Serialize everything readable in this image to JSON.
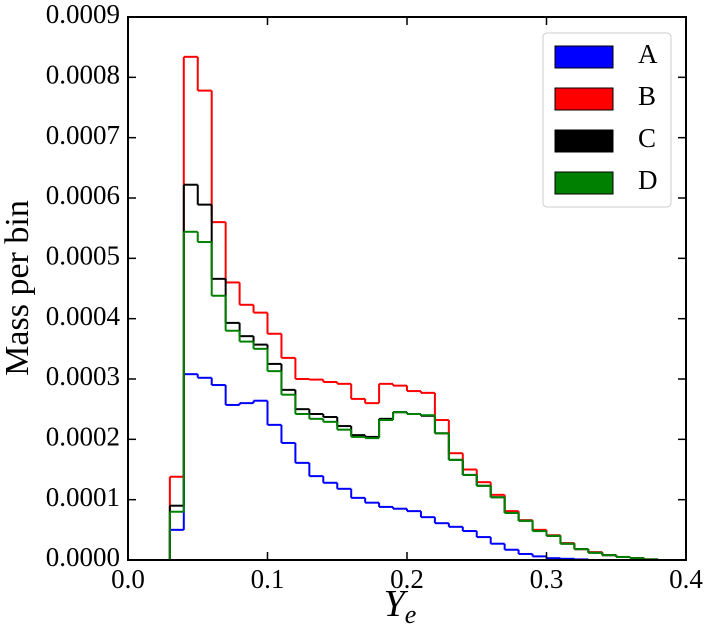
{
  "chart_data": {
    "type": "histogram",
    "y_label": "Mass per bin",
    "x_label": "Y",
    "x_label_subscript": "e",
    "bins": [
      0.03,
      0.04,
      0.05,
      0.06,
      0.07,
      0.08,
      0.09,
      0.1,
      0.11,
      0.12,
      0.13,
      0.14,
      0.15,
      0.16,
      0.17,
      0.18,
      0.19,
      0.2,
      0.21,
      0.22,
      0.23,
      0.24,
      0.25,
      0.26,
      0.27,
      0.28,
      0.29,
      0.3,
      0.31,
      0.32,
      0.33,
      0.34,
      0.35,
      0.36,
      0.37,
      0.38
    ],
    "series": [
      {
        "name": "A",
        "color": "#0000ff",
        "values": [
          5e-05,
          0.000308,
          0.000302,
          0.00029,
          0.000257,
          0.00026,
          0.000264,
          0.000224,
          0.000194,
          0.000161,
          0.000139,
          0.000128,
          0.000118,
          0.000103,
          9.5e-05,
          8.8e-05,
          8.5e-05,
          8.1e-05,
          7.1e-05,
          6.1e-05,
          5.5e-05,
          4.8e-05,
          3.8e-05,
          2.7e-05,
          1.7e-05,
          1e-05,
          6e-06,
          3e-06,
          2e-06,
          1e-06,
          0,
          0,
          0,
          0,
          0
        ]
      },
      {
        "name": "B",
        "color": "#ff0000",
        "values": [
          0.000138,
          0.000834,
          0.000778,
          0.00056,
          0.00046,
          0.000423,
          0.00041,
          0.000375,
          0.000335,
          0.0003,
          0.000299,
          0.000295,
          0.000292,
          0.000267,
          0.00026,
          0.000292,
          0.000289,
          0.00028,
          0.000277,
          0.000232,
          0.000177,
          0.00015,
          0.000129,
          0.000108,
          8.1e-05,
          6.6e-05,
          5e-05,
          4.1e-05,
          2.8e-05,
          1.8e-05,
          1.3e-05,
          8e-06,
          5e-06,
          3e-06,
          1e-06
        ]
      },
      {
        "name": "C",
        "color": "#000000",
        "values": [
          9e-05,
          0.000622,
          0.000589,
          0.000466,
          0.000393,
          0.000371,
          0.000357,
          0.000325,
          0.000282,
          0.00025,
          0.000242,
          0.000237,
          0.000222,
          0.000207,
          0.000204,
          0.000234,
          0.000245,
          0.000242,
          0.000239,
          0.00021,
          0.000166,
          0.000141,
          0.000123,
          0.000104,
          7.8e-05,
          6.5e-05,
          4.8e-05,
          4e-05,
          2.7e-05,
          1.8e-05,
          1.2e-05,
          8e-06,
          5e-06,
          3e-06,
          1e-06
        ]
      },
      {
        "name": "D",
        "color": "#008000",
        "values": [
          8e-05,
          0.000544,
          0.000527,
          0.000438,
          0.00038,
          0.000362,
          0.00035,
          0.000313,
          0.000274,
          0.000242,
          0.000234,
          0.000229,
          0.000216,
          0.000204,
          0.000202,
          0.000232,
          0.000245,
          0.000242,
          0.00024,
          0.00021,
          0.000166,
          0.000141,
          0.000123,
          0.000104,
          7.8e-05,
          6.5e-05,
          4.8e-05,
          4e-05,
          2.7e-05,
          1.8e-05,
          1.2e-05,
          8e-06,
          5e-06,
          3e-06,
          1e-06
        ]
      }
    ],
    "xlim": [
      0,
      0.4
    ],
    "xticks": [
      {
        "value": 0,
        "label": "0.0"
      },
      0.1,
      0.2,
      0.3,
      0.4
    ],
    "ylim": [
      0,
      0.0009
    ],
    "yticks": [
      {
        "value": 0,
        "label": "0.0000"
      },
      {
        "value": 0.0001,
        "label": "0.0001"
      },
      {
        "value": 0.0002,
        "label": "0.0002"
      },
      {
        "value": 0.0003,
        "label": "0.0003"
      },
      {
        "value": 0.0004,
        "label": "0.0004"
      },
      {
        "value": 0.0005,
        "label": "0.0005"
      },
      {
        "value": 0.0006,
        "label": "0.0006"
      },
      {
        "value": 0.0007,
        "label": "0.0007"
      },
      {
        "value": 0.0008,
        "label": "0.0008"
      },
      {
        "value": 0.0009,
        "label": "0.0009"
      }
    ],
    "legend": "upper right"
  }
}
